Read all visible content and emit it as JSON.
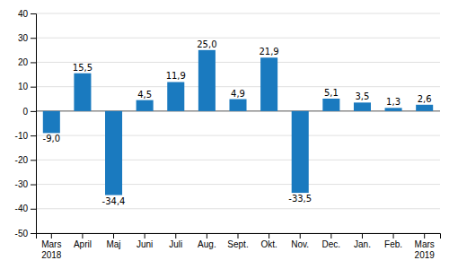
{
  "chart_data": {
    "type": "bar",
    "categories": [
      "Mars\n2018",
      "April",
      "Maj",
      "Juni",
      "Juli",
      "Aug.",
      "Sept.",
      "Okt.",
      "Nov.",
      "Dec.",
      "Jan.",
      "Feb.",
      "Mars\n2019"
    ],
    "values": [
      -9.0,
      15.5,
      -34.4,
      4.5,
      11.9,
      25.0,
      4.9,
      21.9,
      -33.5,
      5.1,
      3.5,
      1.3,
      2.6
    ],
    "value_labels": [
      "-9,0",
      "15,5",
      "-34,4",
      "4,5",
      "11,9",
      "25,0",
      "4,9",
      "21,9",
      "-33,5",
      "5,1",
      "3,5",
      "1,3",
      "2,6"
    ],
    "data_labels": true,
    "color": "#1a7abf",
    "ylim": [
      -50,
      40
    ],
    "yticks": [
      -50,
      -40,
      -30,
      -20,
      -10,
      0,
      10,
      20,
      30,
      40
    ],
    "grid": true
  }
}
